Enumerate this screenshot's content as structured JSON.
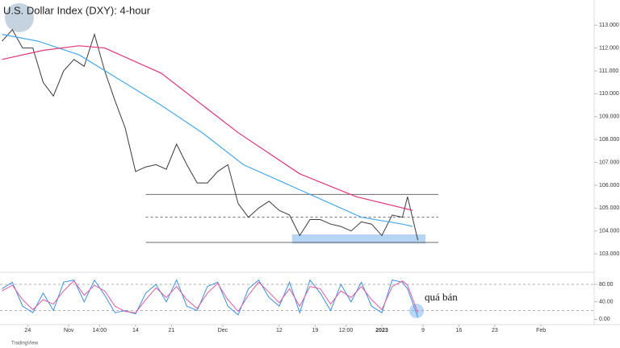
{
  "chart_data": {
    "type": "line",
    "title": "U.S. Dollar Index (DXY): 4-hour",
    "source": "TradingView",
    "annotation": "quá bán",
    "xlim": [
      1.6,
      117.2
    ],
    "xticks": [
      {
        "value": 7,
        "label": "24"
      },
      {
        "value": 15,
        "label": "Nov"
      },
      {
        "value": 21,
        "label": "14:00"
      },
      {
        "value": 28,
        "label": "14"
      },
      {
        "value": 35,
        "label": "21"
      },
      {
        "value": 45,
        "label": "Dec"
      },
      {
        "value": 56,
        "label": "12"
      },
      {
        "value": 63,
        "label": "19"
      },
      {
        "value": 69,
        "label": "12:00"
      },
      {
        "value": 76,
        "label": "2023"
      },
      {
        "value": 84,
        "label": "9"
      },
      {
        "value": 91,
        "label": "16"
      },
      {
        "value": 98,
        "label": "23"
      },
      {
        "value": 107,
        "label": "Feb"
      }
    ],
    "ylim": [
      102.3,
      114.1
    ],
    "yticks": [
      {
        "value": 103,
        "label": "103.000"
      },
      {
        "value": 104,
        "label": "104.000"
      },
      {
        "value": 105,
        "label": "105.000"
      },
      {
        "value": 106,
        "label": "106.000"
      },
      {
        "value": 107,
        "label": "107.000"
      },
      {
        "value": 108,
        "label": "108.000"
      },
      {
        "value": 109,
        "label": "109.000"
      },
      {
        "value": 110,
        "label": "110.000"
      },
      {
        "value": 111,
        "label": "111.000"
      },
      {
        "value": 112,
        "label": "112.000"
      },
      {
        "value": 113,
        "label": "113.000"
      }
    ],
    "series": [
      {
        "color": "#3a3a3a",
        "x": [
          2,
          4,
          6,
          8,
          10,
          12,
          14,
          16,
          18,
          20,
          22,
          24,
          26,
          28,
          30,
          32,
          34,
          36,
          38,
          40,
          42,
          44,
          46,
          48,
          50,
          52,
          54,
          56,
          58,
          60,
          62,
          64,
          66,
          68,
          70,
          72,
          74,
          76,
          78,
          80,
          81,
          83
        ],
        "values": [
          112.3,
          112.8,
          112.0,
          112.0,
          110.5,
          109.9,
          111.0,
          111.5,
          111.2,
          112.6,
          111.0,
          109.7,
          108.5,
          106.6,
          106.8,
          106.9,
          106.7,
          107.8,
          106.9,
          106.1,
          106.1,
          106.6,
          106.9,
          105.2,
          104.6,
          105.0,
          105.3,
          104.9,
          104.7,
          103.8,
          104.5,
          104.5,
          104.3,
          104.2,
          104.0,
          104.4,
          104.3,
          103.8,
          104.7,
          104.6,
          105.5,
          103.6
        ]
      },
      {
        "color": "#4aa8e8",
        "x": [
          2,
          9,
          17,
          25,
          33,
          41,
          49,
          57,
          65,
          72,
          80,
          82
        ],
        "values": [
          112.6,
          112.3,
          111.7,
          110.6,
          109.5,
          108.3,
          106.9,
          106.1,
          105.3,
          104.6,
          104.3,
          104.2
        ]
      },
      {
        "color": "#e0357a",
        "x": [
          2,
          10,
          17,
          22,
          33,
          48,
          60,
          71,
          82
        ],
        "values": [
          111.5,
          111.9,
          112.1,
          112.0,
          110.9,
          108.3,
          106.5,
          105.5,
          104.9
        ]
      }
    ],
    "levels": [
      {
        "value": 105.6,
        "x": [
          30,
          87
        ],
        "dashed": false
      },
      {
        "value": 104.6,
        "x": [
          30,
          87
        ],
        "dashed": true
      },
      {
        "value": 103.5,
        "x": [
          30,
          87
        ],
        "dashed": false
      }
    ],
    "zone": {
      "x": [
        58.5,
        84.5
      ],
      "y": [
        103.45,
        103.85
      ],
      "color": "#a9cdf2"
    },
    "oscillator": {
      "ylim": [
        -16,
        104
      ],
      "yticks": [
        {
          "value": 80,
          "label": "80.00"
        },
        {
          "value": 40,
          "label": "40.00"
        },
        {
          "value": 0,
          "label": "0.00"
        }
      ],
      "levels": [
        80,
        20
      ],
      "series": [
        {
          "color": "#3d8fe0",
          "x": [
            2,
            4,
            6,
            8,
            10,
            12,
            14,
            16,
            18,
            20,
            22,
            24,
            26,
            28,
            30,
            32,
            34,
            36,
            38,
            40,
            42,
            44,
            46,
            48,
            50,
            52,
            54,
            56,
            58,
            60,
            62,
            64,
            66,
            68,
            70,
            72,
            74,
            76,
            78,
            80,
            81,
            83
          ],
          "values": [
            70,
            85,
            30,
            15,
            60,
            20,
            85,
            90,
            40,
            90,
            55,
            15,
            20,
            12,
            60,
            80,
            40,
            90,
            30,
            20,
            75,
            85,
            30,
            10,
            70,
            90,
            50,
            30,
            85,
            15,
            90,
            60,
            20,
            80,
            40,
            85,
            30,
            15,
            90,
            85,
            70,
            5
          ]
        },
        {
          "color": "#e05aa0",
          "x": [
            2,
            4,
            6,
            8,
            10,
            12,
            14,
            16,
            18,
            20,
            22,
            24,
            26,
            28,
            30,
            32,
            34,
            36,
            38,
            40,
            42,
            44,
            46,
            48,
            50,
            52,
            54,
            56,
            58,
            60,
            62,
            64,
            66,
            68,
            70,
            72,
            74,
            76,
            78,
            80,
            81,
            83
          ],
          "values": [
            65,
            78,
            45,
            22,
            45,
            35,
            65,
            88,
            55,
            78,
            65,
            30,
            18,
            15,
            45,
            72,
            50,
            75,
            45,
            25,
            60,
            82,
            45,
            18,
            55,
            85,
            62,
            38,
            70,
            30,
            75,
            70,
            35,
            65,
            50,
            75,
            45,
            22,
            75,
            88,
            78,
            15
          ]
        }
      ]
    }
  }
}
